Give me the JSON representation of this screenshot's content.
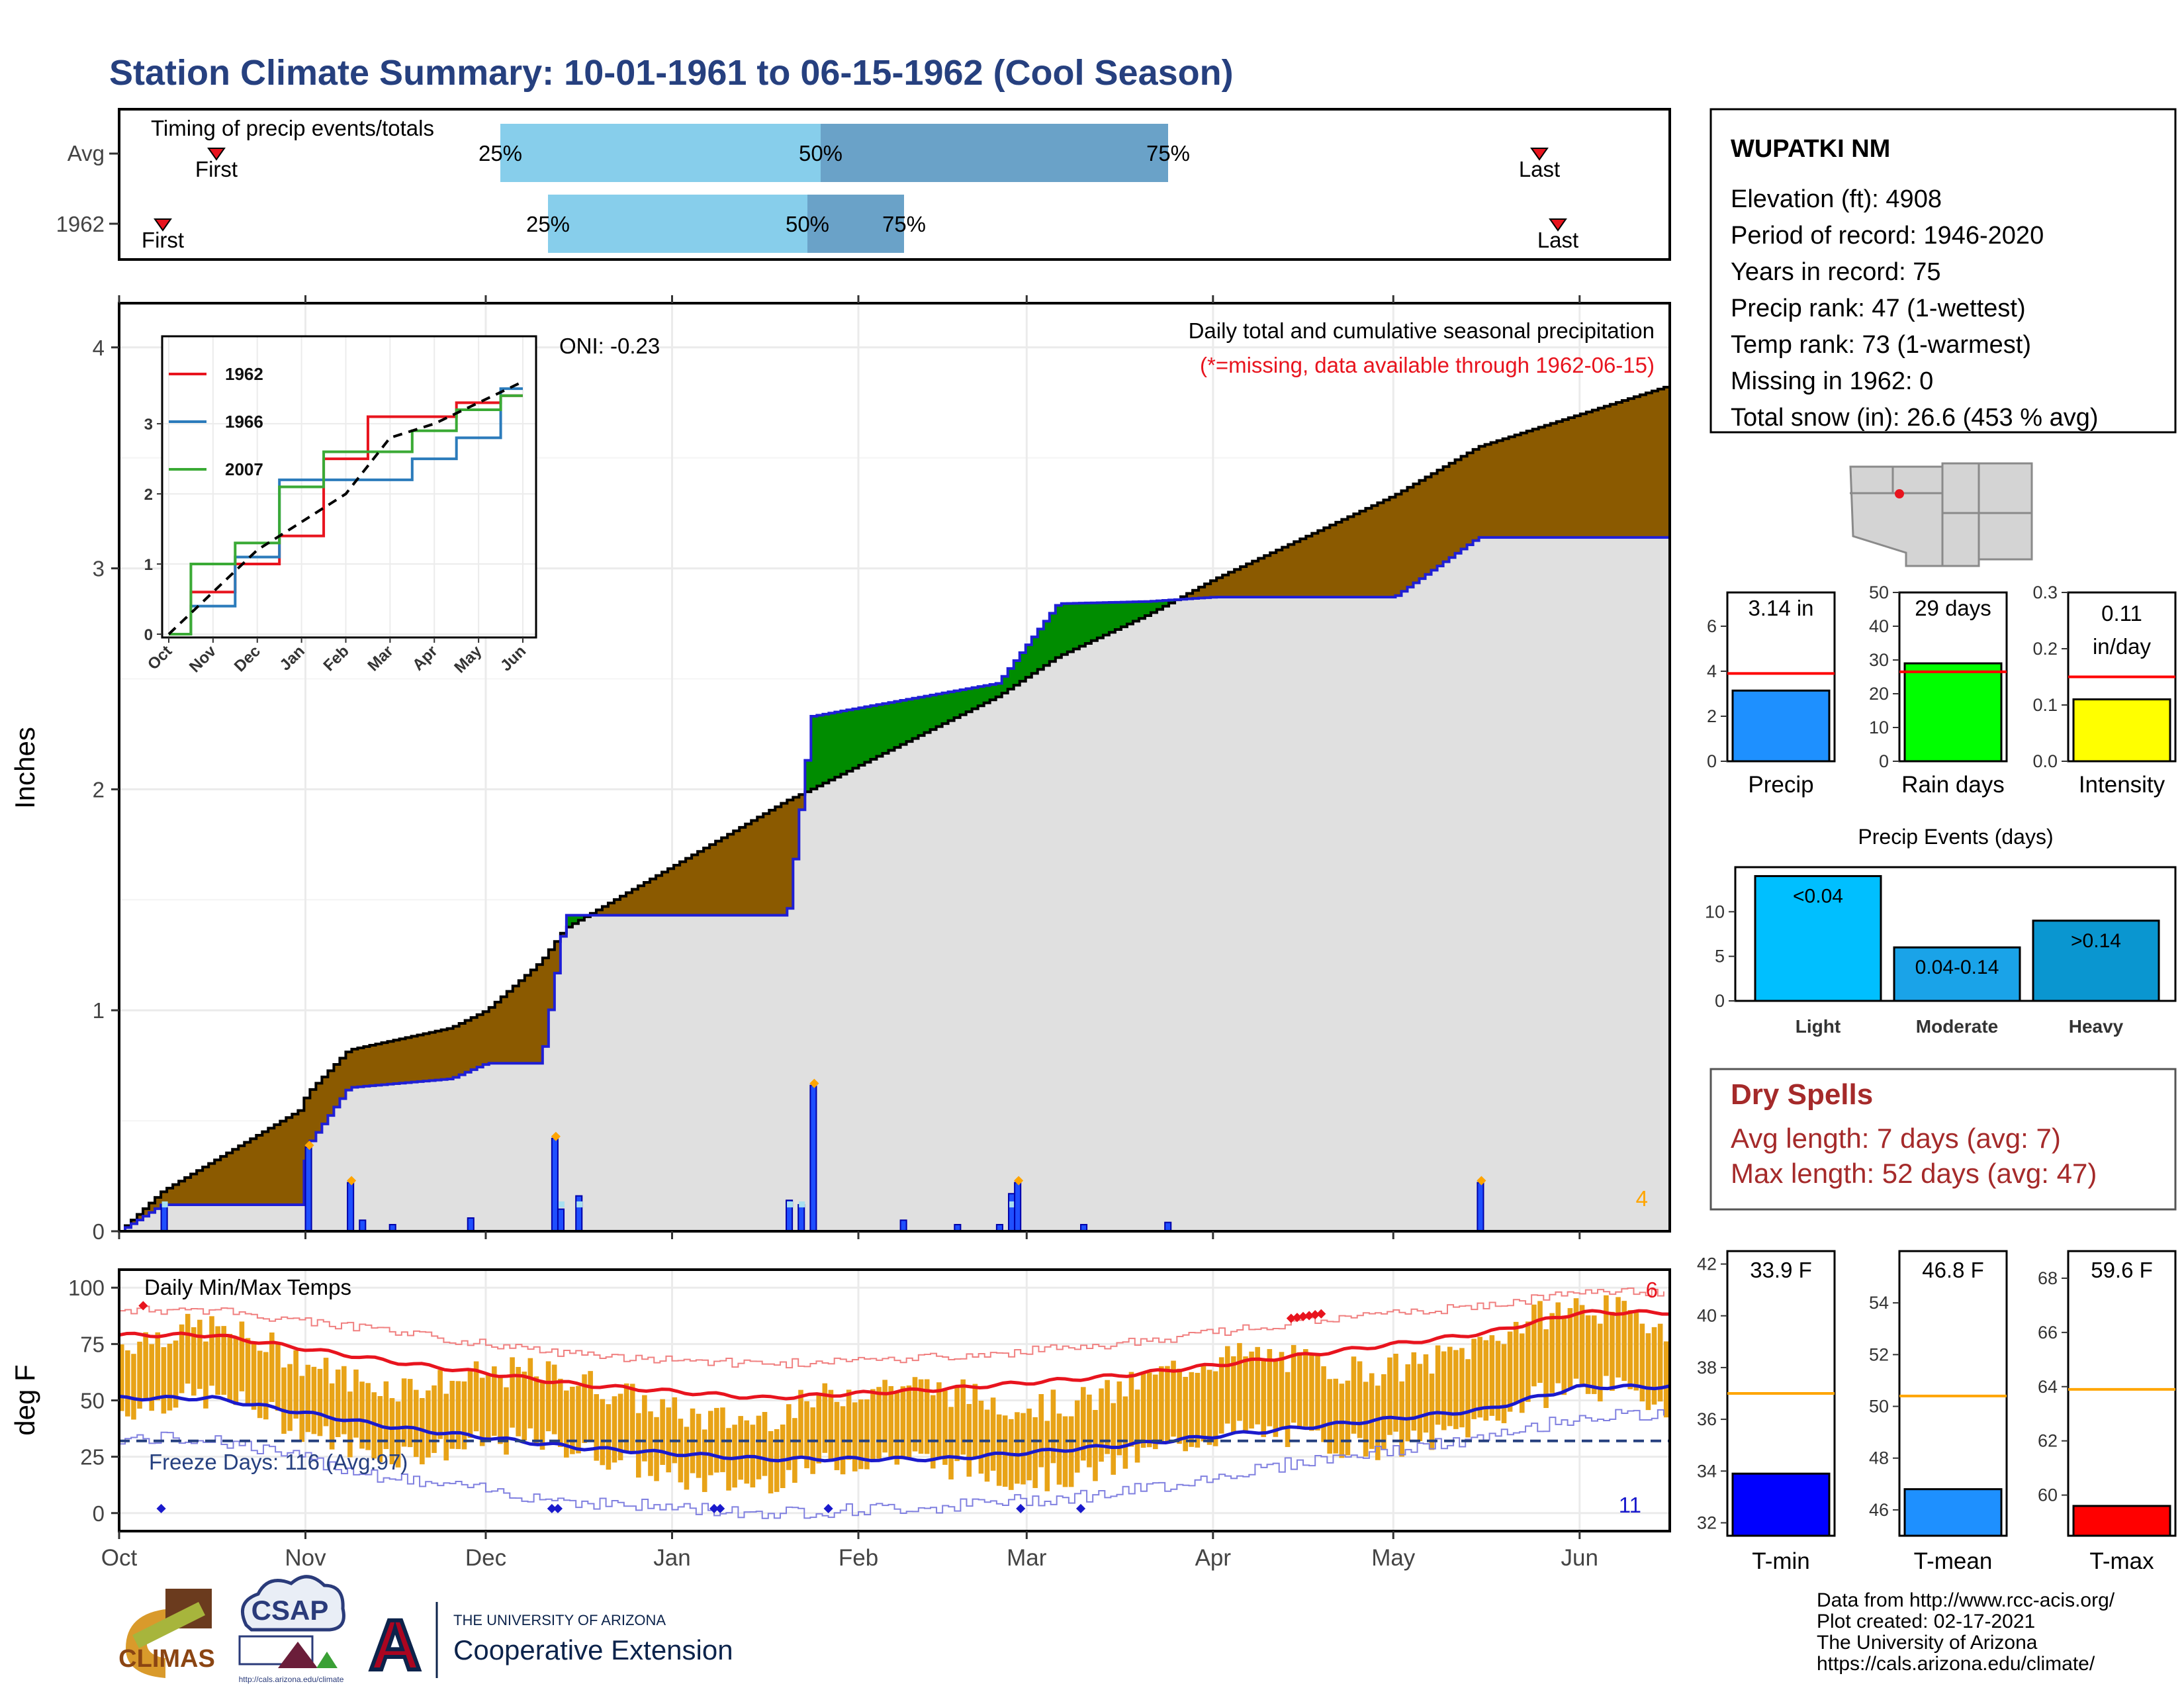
{
  "title": "Station Climate Summary: 10-01-1961 to 06-15-1962 (Cool Season)",
  "colors": {
    "title": "#26407f",
    "avg_total": "#8b5a00",
    "above_avg": "#008c00",
    "cum_fill": "#e0e0e0",
    "cum_line": "#1f1fd6",
    "bars": "#1f4fff",
    "marker": "#ffa500",
    "temp_bar": "#e8a317",
    "max_line": "#e8141e",
    "min_line": "#1a1acc",
    "dry": "#a52a2a",
    "light_blue": "#87ceeb",
    "mid_blue": "#6aa2c8"
  },
  "timing": {
    "title": "Timing of precip events/totals",
    "rows": [
      "Avg",
      "1962"
    ],
    "first": "First",
    "last": "Last",
    "p25": "25%",
    "p50": "50%",
    "p75": "75%"
  },
  "precip_panel": {
    "oni": "ONI: -0.23",
    "caption": "Daily total and cumulative seasonal precipitation",
    "missing_note": "(*=missing, data available through 1962-06-15)",
    "missing_count": "4",
    "ylabel": "Inches",
    "yticks": [
      "0",
      "1",
      "2",
      "3",
      "4"
    ]
  },
  "inset": {
    "series": [
      {
        "name": "1962",
        "color": "#e8141e"
      },
      {
        "name": "1966",
        "color": "#2b7bbb"
      },
      {
        "name": "2007",
        "color": "#3aaa35"
      }
    ],
    "months": [
      "Oct",
      "Nov",
      "Dec",
      "Jan",
      "Feb",
      "Mar",
      "Apr",
      "May",
      "Jun"
    ],
    "yticks": [
      "0",
      "1",
      "2",
      "3"
    ]
  },
  "temp_panel": {
    "title": "Daily Min/Max Temps",
    "ylabel": "deg F",
    "yticks": [
      "0",
      "25",
      "50",
      "75",
      "100"
    ],
    "freeze": "Freeze Days: 116 (Avg:97)",
    "hot_count": "6",
    "cold_count": "11",
    "months": [
      "Oct",
      "Nov",
      "Dec",
      "Jan",
      "Feb",
      "Mar",
      "Apr",
      "May",
      "Jun"
    ]
  },
  "station": {
    "name": "WUPATKI NM",
    "lines": [
      "Elevation (ft): 4908",
      "Period of record: 1946-2020",
      "Years in record: 75",
      "Precip rank: 47 (1-wettest)",
      "Temp rank: 73 (1-warmest)",
      "Missing in 1962: 0",
      "Total snow (in): 26.6 (453 % avg)"
    ]
  },
  "small_bars": [
    {
      "label": "Precip",
      "value_text": "3.14 in",
      "value": 3.14,
      "avg": 3.9,
      "ymax": 7.5,
      "ticks": [
        "0",
        "2",
        "4",
        "6"
      ],
      "tick_vals": [
        0,
        2,
        4,
        6
      ],
      "color": "#1e90ff"
    },
    {
      "label": "Rain days",
      "value_text": "29 days",
      "value": 29,
      "avg": 26.5,
      "ymax": 50,
      "ticks": [
        "0",
        "10",
        "20",
        "30",
        "40",
        "50"
      ],
      "tick_vals": [
        0,
        10,
        20,
        30,
        40,
        50
      ],
      "color": "#00ff00"
    },
    {
      "label": "Intensity",
      "value_text": "0.11\nin/day",
      "value": 0.11,
      "avg": 0.15,
      "ymax": 0.3,
      "ticks": [
        "0.0",
        "0.1",
        "0.2",
        "0.3"
      ],
      "tick_vals": [
        0,
        0.1,
        0.2,
        0.3
      ],
      "color": "#ffff00"
    }
  ],
  "events": {
    "title": "Precip Events (days)",
    "ticks": [
      "0",
      "5",
      "10"
    ],
    "bars": [
      {
        "label": "Light",
        "value_text": "<0.04",
        "value": 14,
        "color": "#00bfff"
      },
      {
        "label": "Moderate",
        "value_text": "0.04-0.14",
        "value": 6,
        "color": "#1aa3e8"
      },
      {
        "label": "Heavy",
        "value_text": ">0.14",
        "value": 9,
        "color": "#0a96d0"
      }
    ]
  },
  "dry_spells": {
    "title": "Dry Spells",
    "avg": "Avg length: 7 days (avg: 7)",
    "max": "Max length: 52 days (avg: 47)"
  },
  "temp_bars": [
    {
      "label": "T-min",
      "value_text": "33.9 F",
      "value": 33.9,
      "avg": 37.0,
      "ymin": 31.5,
      "ymax": 42.5,
      "ticks": [
        "32",
        "34",
        "36",
        "38",
        "40",
        "42"
      ],
      "tick_vals": [
        32,
        34,
        36,
        38,
        40,
        42
      ],
      "color": "#0000ff"
    },
    {
      "label": "T-mean",
      "value_text": "46.8 F",
      "value": 46.8,
      "avg": 50.4,
      "ymin": 45.0,
      "ymax": 56.0,
      "ticks": [
        "46",
        "48",
        "50",
        "52",
        "54"
      ],
      "tick_vals": [
        46,
        48,
        50,
        52,
        54
      ],
      "color": "#1e90ff"
    },
    {
      "label": "T-max",
      "value_text": "59.6 F",
      "value": 59.6,
      "avg": 63.9,
      "ymin": 58.5,
      "ymax": 69.0,
      "ticks": [
        "60",
        "62",
        "64",
        "66",
        "68"
      ],
      "tick_vals": [
        60,
        62,
        64,
        66,
        68
      ],
      "color": "#ff0000"
    }
  ],
  "footer": {
    "lines": [
      "Data from http://www.rcc-acis.org/",
      "Plot created: 02-17-2021",
      "The University of Arizona",
      "https://cals.arizona.edu/climate/"
    ],
    "climas": "CLIMAS",
    "csap": "CSAP",
    "csap_url": "http://cals.arizona.edu/climate",
    "ua_top": "THE UNIVERSITY OF ARIZONA",
    "ua_bottom": "Cooperative Extension",
    "ua_letter": "A"
  },
  "chart_data": [
    {
      "type": "area",
      "title": "Daily total and cumulative seasonal precipitation",
      "xlabel": "",
      "ylabel": "Inches",
      "ylim": [
        0,
        4.2
      ],
      "x": [
        "1961-10-01",
        "1961-10-08",
        "1961-10-31",
        "1961-11-01",
        "1961-11-08",
        "1961-11-25",
        "1961-12-01",
        "1961-12-10",
        "1961-12-14",
        "1962-01-20",
        "1962-01-24",
        "1962-02-24",
        "1962-03-06",
        "1962-03-21",
        "1962-04-01",
        "1962-05-01",
        "1962-05-15",
        "1962-06-15"
      ],
      "series": [
        {
          "name": "1962",
          "values": [
            0.0,
            0.12,
            0.12,
            0.38,
            0.65,
            0.69,
            0.76,
            0.76,
            1.43,
            1.43,
            2.33,
            2.48,
            2.84,
            2.85,
            2.87,
            2.87,
            3.14,
            3.14
          ]
        },
        {
          "values": [
            0.0,
            0.18,
            0.55,
            0.62,
            0.82,
            0.92,
            1.0,
            1.22,
            1.37,
            1.95,
            2.0,
            2.42,
            2.6,
            2.79,
            2.95,
            3.33,
            3.55,
            3.82
          ]
        }
      ],
      "daily": [
        {
          "x": "1961-10-08",
          "y": 0.12
        },
        {
          "x": "1961-11-01",
          "y": 0.38
        },
        {
          "x": "1961-11-08",
          "y": 0.22
        },
        {
          "x": "1961-11-10",
          "y": 0.05
        },
        {
          "x": "1961-11-15",
          "y": 0.03
        },
        {
          "x": "1961-11-28",
          "y": 0.06
        },
        {
          "x": "1961-12-12",
          "y": 0.42
        },
        {
          "x": "1961-12-13",
          "y": 0.1
        },
        {
          "x": "1961-12-16",
          "y": 0.16
        },
        {
          "x": "1962-01-20",
          "y": 0.14
        },
        {
          "x": "1962-01-22",
          "y": 0.12
        },
        {
          "x": "1962-01-24",
          "y": 0.66
        },
        {
          "x": "1962-02-08",
          "y": 0.05
        },
        {
          "x": "1962-02-17",
          "y": 0.03
        },
        {
          "x": "1962-02-24",
          "y": 0.03
        },
        {
          "x": "1962-02-26",
          "y": 0.17
        },
        {
          "x": "1962-02-27",
          "y": 0.22
        },
        {
          "x": "1962-03-10",
          "y": 0.03
        },
        {
          "x": "1962-03-24",
          "y": 0.04
        },
        {
          "x": "1962-05-15",
          "y": 0.22
        }
      ]
    },
    {
      "type": "line",
      "title": "",
      "xlabel": "",
      "ylabel": "",
      "categories": [
        "Oct",
        "Nov",
        "Dec",
        "Jan",
        "Feb",
        "Mar",
        "Apr",
        "May",
        "Jun"
      ],
      "ylim": [
        0,
        4.2
      ],
      "series": [
        {
          "name": "1962",
          "values": [
            0.0,
            0.6,
            1.0,
            1.4,
            2.5,
            3.1,
            3.1,
            3.3,
            3.4
          ]
        },
        {
          "name": "1966",
          "values": [
            0.0,
            0.4,
            1.1,
            2.2,
            2.2,
            2.2,
            2.5,
            2.8,
            3.5
          ]
        },
        {
          "name": "2007",
          "values": [
            0.0,
            1.0,
            1.3,
            2.1,
            2.6,
            2.6,
            2.9,
            3.2,
            3.4
          ]
        },
        {
          "values": [
            0.0,
            0.6,
            1.2,
            1.6,
            2.0,
            2.8,
            3.0,
            3.3,
            3.6
          ]
        }
      ]
    },
    {
      "type": "line",
      "title": "Daily Min/Max Temps",
      "xlabel": "",
      "ylabel": "deg F",
      "categories": [
        "Oct",
        "Nov",
        "Dec",
        "Jan",
        "Feb",
        "Mar",
        "Apr",
        "May",
        "Jun"
      ],
      "ylim": [
        -8,
        108
      ],
      "series": [
        {
          "name": "avg max",
          "values": [
            79,
            67,
            57,
            51,
            55,
            61,
            70,
            80,
            89
          ]
        },
        {
          "name": "avg min",
          "values": [
            51,
            38,
            29,
            24,
            24,
            30,
            38,
            46,
            56
          ]
        },
        {
          "name": "record high",
          "values": [
            92,
            82,
            72,
            68,
            71,
            77,
            87,
            94,
            100
          ]
        },
        {
          "name": "record low",
          "values": [
            30,
            12,
            2,
            -3,
            0,
            6,
            20,
            30,
            40
          ]
        },
        {
          "name": "freeze",
          "values": [
            32,
            32,
            32,
            32,
            32,
            32,
            32,
            32,
            32
          ]
        }
      ]
    }
  ]
}
